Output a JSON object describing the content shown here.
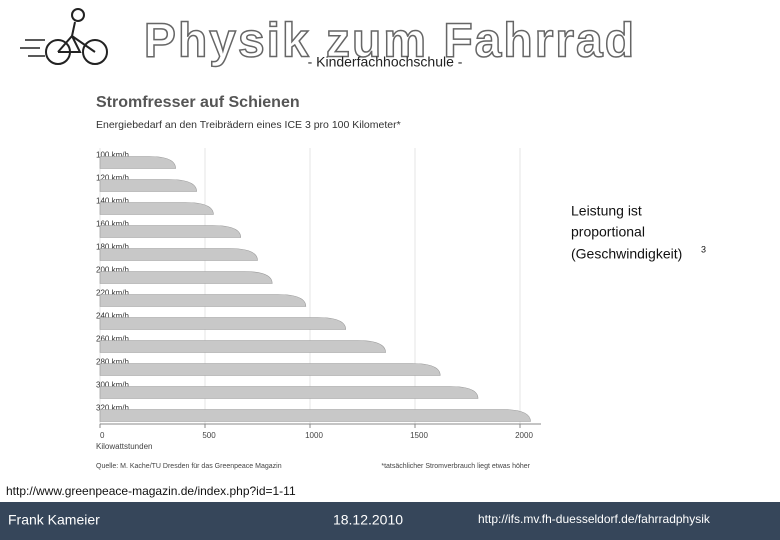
{
  "slide_title": "Physik zum Fahrrad",
  "slide_subtitle": "- Kinderfachhochschule -",
  "annotation": {
    "lines": [
      "Leistung ist",
      "proportional",
      "(Geschwindigkeit)"
    ],
    "exponent": "3"
  },
  "source_url": "http://www.greenpeace-magazin.de/index.php?id=1-11",
  "footer": {
    "author": "Frank Kameier",
    "date": "18.12.2010",
    "url": "http://ifs.mv.fh-duesseldorf.de/fahrradphysik"
  },
  "chart_data": {
    "type": "bar",
    "orientation": "horizontal",
    "title": "Stromfresser auf Schienen",
    "subtitle": "Energiebedarf an den Treibrädern eines ICE 3 pro 100 Kilometer*",
    "categories": [
      "100 km/h",
      "120 km/h",
      "140 km/h",
      "160 km/h",
      "180 km/h",
      "200 km/h",
      "220 km/h",
      "240 km/h",
      "260 km/h",
      "280 km/h",
      "300 km/h",
      "320 km/h"
    ],
    "values": [
      360,
      460,
      540,
      670,
      750,
      820,
      980,
      1170,
      1360,
      1620,
      1800,
      2050
    ],
    "color": "#c8c8c8",
    "xlim": [
      0,
      2100
    ],
    "xticks": [
      0,
      500,
      1000,
      1500,
      2000
    ],
    "x_label": "Kilowattstunden",
    "grid": true,
    "source": "Quelle: M. Kache/TU Dresden für das Greenpeace Magazin",
    "footnote": "*tatsächlicher Stromverbrauch liegt etwas höher"
  }
}
